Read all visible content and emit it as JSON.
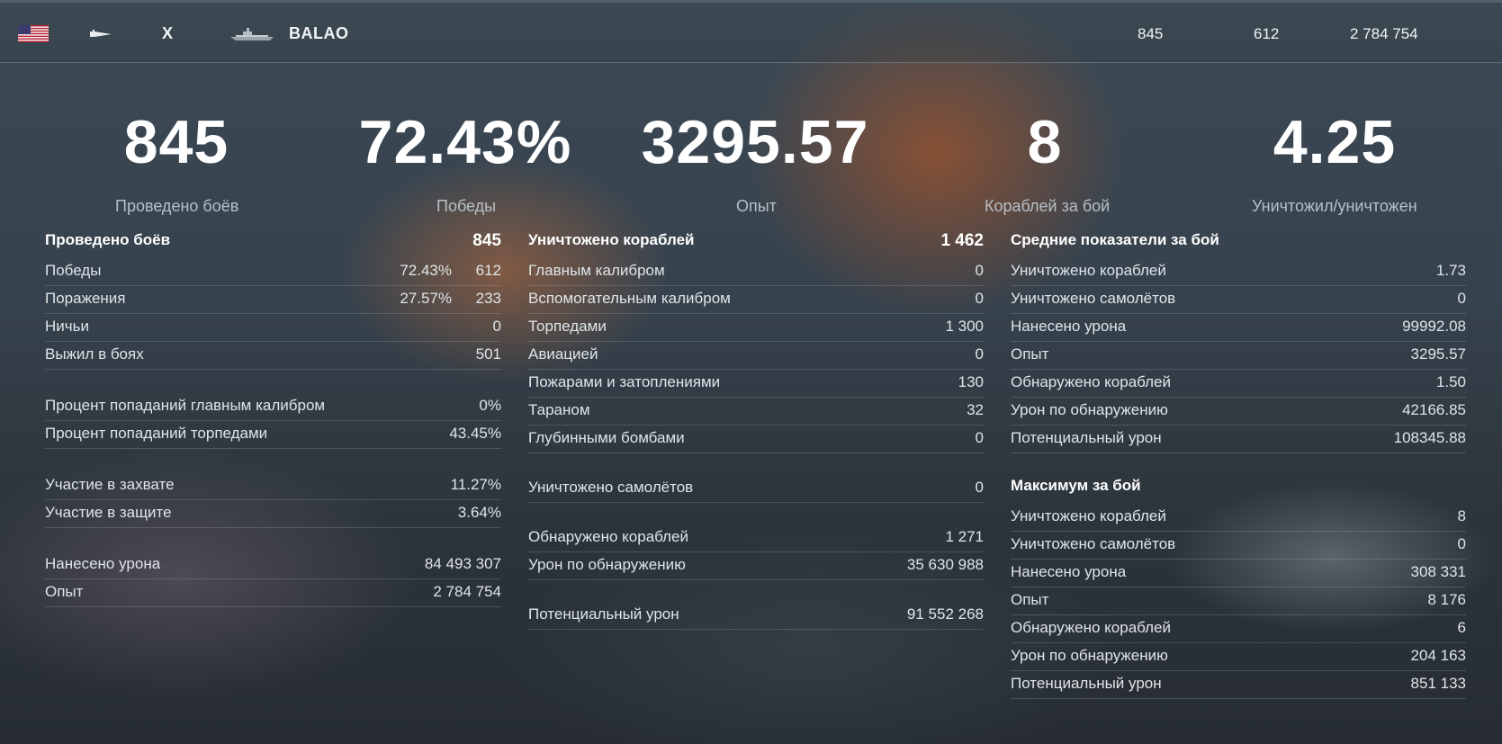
{
  "header": {
    "flag": "usa-flag-icon",
    "class_icon": "submarine-class-icon",
    "tier": "X",
    "ship_name": "BALAO",
    "stats": [
      "845",
      "612",
      "2 784 754"
    ]
  },
  "summary": [
    {
      "value": "845",
      "label": "Проведено боёв"
    },
    {
      "value": "72.43%",
      "label": "Победы"
    },
    {
      "value": "3295.57",
      "label": "Опыт"
    },
    {
      "value": "8",
      "label": "Кораблей за бой"
    },
    {
      "value": "4.25",
      "label": "Уничтожил/уничтожен"
    }
  ],
  "col1": {
    "title": "Проведено боёв",
    "title_value": "845",
    "rows": [
      {
        "label": "Победы",
        "pct": "72.43%",
        "value": "612"
      },
      {
        "label": "Поражения",
        "pct": "27.57%",
        "value": "233"
      },
      {
        "label": "Ничьи",
        "value": "0"
      },
      {
        "label": "Выжил в боях",
        "value": "501"
      },
      {
        "label": "Процент попаданий главным калибром",
        "value": "0%"
      },
      {
        "label": "Процент попаданий торпедами",
        "value": "43.45%"
      },
      {
        "label": "Участие в захвате",
        "value": "11.27%"
      },
      {
        "label": "Участие в защите",
        "value": "3.64%"
      },
      {
        "label": "Нанесено урона",
        "value": "84 493 307"
      },
      {
        "label": "Опыт",
        "value": "2 784 754"
      }
    ]
  },
  "col2": {
    "title": "Уничтожено кораблей",
    "title_value": "1 462",
    "rows": [
      {
        "label": "Главным калибром",
        "value": "0"
      },
      {
        "label": "Вспомогательным калибром",
        "value": "0"
      },
      {
        "label": "Торпедами",
        "value": "1 300"
      },
      {
        "label": "Авиацией",
        "value": "0"
      },
      {
        "label": "Пожарами и затоплениями",
        "value": "130"
      },
      {
        "label": "Тараном",
        "value": "32"
      },
      {
        "label": "Глубинными бомбами",
        "value": "0"
      },
      {
        "label": "Уничтожено самолётов",
        "value": "0"
      },
      {
        "label": "Обнаружено кораблей",
        "value": "1 271"
      },
      {
        "label": "Урон по обнаружению",
        "value": "35 630 988"
      },
      {
        "label": "Потенциальный урон",
        "value": "91 552 268"
      }
    ]
  },
  "col3": {
    "title": "Средние показатели за бой",
    "rows": [
      {
        "label": "Уничтожено кораблей",
        "value": "1.73"
      },
      {
        "label": "Уничтожено самолётов",
        "value": "0"
      },
      {
        "label": "Нанесено урона",
        "value": "99992.08"
      },
      {
        "label": "Опыт",
        "value": "3295.57"
      },
      {
        "label": "Обнаружено кораблей",
        "value": "1.50"
      },
      {
        "label": "Урон по обнаружению",
        "value": "42166.85"
      },
      {
        "label": "Потенциальный урон",
        "value": "108345.88"
      }
    ],
    "title2": "Максимум за бой",
    "rows2": [
      {
        "label": "Уничтожено кораблей",
        "value": "8"
      },
      {
        "label": "Уничтожено самолётов",
        "value": "0"
      },
      {
        "label": "Нанесено урона",
        "value": "308 331"
      },
      {
        "label": "Опыт",
        "value": "8 176"
      },
      {
        "label": "Обнаружено кораблей",
        "value": "6"
      },
      {
        "label": "Урон по обнаружению",
        "value": "204 163"
      },
      {
        "label": "Потенциальный урон",
        "value": "851 133"
      }
    ]
  }
}
